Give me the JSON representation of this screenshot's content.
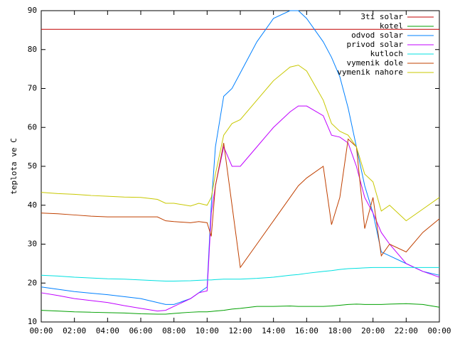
{
  "chart_data": {
    "type": "line",
    "y_label": "teplota ve C",
    "x": [
      0,
      1,
      2,
      3,
      4,
      5,
      6,
      7,
      7.5,
      8,
      9,
      9.5,
      10,
      10.25,
      10.5,
      11,
      11.5,
      12,
      13,
      14,
      15,
      15.5,
      16,
      17,
      17.5,
      18,
      18.5,
      19,
      19.5,
      20,
      20.5,
      21,
      22,
      23,
      24
    ],
    "xlim": [
      0,
      24
    ],
    "xticks": [
      {
        "value": 0,
        "label": "00:00"
      },
      {
        "value": 2,
        "label": "02:00"
      },
      {
        "value": 4,
        "label": "04:00"
      },
      {
        "value": 6,
        "label": "06:00"
      },
      {
        "value": 8,
        "label": "08:00"
      },
      {
        "value": 10,
        "label": "10:00"
      },
      {
        "value": 12,
        "label": "12:00"
      },
      {
        "value": 14,
        "label": "14:00"
      },
      {
        "value": 16,
        "label": "16:00"
      },
      {
        "value": 18,
        "label": "18:00"
      },
      {
        "value": 20,
        "label": "20:00"
      },
      {
        "value": 22,
        "label": "22:00"
      },
      {
        "value": 24,
        "label": "00:00"
      }
    ],
    "ylim": [
      10,
      90
    ],
    "yticks": [
      10,
      20,
      30,
      40,
      50,
      60,
      70,
      80,
      90
    ],
    "legend": "top-right",
    "series": [
      {
        "name": "3ti solar",
        "color": "#c00000",
        "values": [
          85.2,
          85.2,
          85.2,
          85.2,
          85.2,
          85.2,
          85.2,
          85.2,
          85.2,
          85.2,
          85.2,
          85.2,
          85.2,
          85.2,
          85.2,
          85.2,
          85.2,
          85.2,
          85.2,
          85.2,
          85.2,
          85.2,
          85.2,
          85.2,
          85.2,
          85.2,
          85.2,
          85.2,
          85.2,
          85.2,
          85.2,
          85.2,
          85.2,
          85.2,
          85.2
        ]
      },
      {
        "name": "kotel",
        "color": "#00a000",
        "values": [
          13,
          12.8,
          12.6,
          12.5,
          12.4,
          12.3,
          12.1,
          12,
          12,
          12.2,
          12.5,
          12.6,
          12.6,
          12.7,
          12.8,
          13,
          13.3,
          13.5,
          14,
          14,
          14.1,
          14,
          14,
          14,
          14.1,
          14.3,
          14.5,
          14.6,
          14.5,
          14.5,
          14.5,
          14.6,
          14.7,
          14.5,
          13.8
        ]
      },
      {
        "name": "odvod solar",
        "color": "#0080ff",
        "values": [
          19,
          18.4,
          17.8,
          17.4,
          17,
          16.5,
          16,
          15,
          14.5,
          14.5,
          16,
          17.5,
          19,
          40,
          55,
          68,
          70,
          74,
          82,
          88,
          90,
          90,
          88,
          82,
          78,
          73,
          65,
          55,
          45,
          38,
          28,
          27,
          25,
          23,
          22
        ]
      },
      {
        "name": "privod solar",
        "color": "#c000ff",
        "values": [
          17.5,
          16.8,
          16,
          15.5,
          15,
          14.2,
          13.5,
          12.8,
          13,
          14,
          16,
          17.5,
          18,
          38,
          45,
          55,
          50,
          50,
          55,
          60,
          64,
          65.5,
          65.5,
          63,
          58,
          57.5,
          56,
          50,
          42,
          38,
          33,
          30,
          25,
          23,
          21.5
        ]
      },
      {
        "name": "kutloch",
        "color": "#00e0e0",
        "values": [
          22,
          21.8,
          21.5,
          21.3,
          21.1,
          21,
          20.8,
          20.6,
          20.5,
          20.5,
          20.6,
          20.7,
          20.8,
          20.8,
          20.9,
          21,
          21,
          21,
          21.2,
          21.5,
          22,
          22.2,
          22.5,
          23,
          23.2,
          23.5,
          23.7,
          23.8,
          23.9,
          24,
          24,
          24,
          24,
          24,
          24
        ]
      },
      {
        "name": "vymenik dole",
        "color": "#c04000",
        "values": [
          38,
          37.8,
          37.5,
          37.2,
          37,
          37,
          37,
          37,
          36,
          35.8,
          35.5,
          35.8,
          35.5,
          32,
          45,
          56,
          40,
          24,
          30,
          36,
          42,
          45,
          47,
          50,
          35,
          42,
          57,
          55,
          34,
          42,
          27,
          30,
          28,
          33,
          36.5
        ]
      },
      {
        "name": "vymenik nahore",
        "color": "#c8c800",
        "values": [
          43.3,
          43,
          42.8,
          42.5,
          42.3,
          42.1,
          42,
          41.5,
          40.5,
          40.5,
          39.8,
          40.5,
          40,
          42,
          48,
          58,
          61,
          62,
          67,
          72,
          75.5,
          76,
          74.5,
          67,
          61,
          59,
          58,
          55,
          48,
          46,
          38.5,
          40,
          36,
          39,
          42
        ]
      }
    ]
  }
}
